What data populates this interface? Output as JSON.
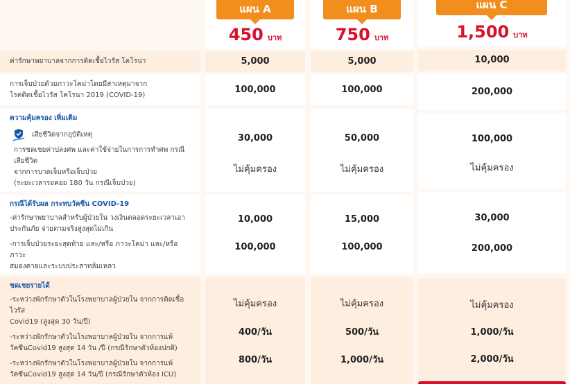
{
  "plans": [
    {
      "name": "แผน A",
      "price": "450",
      "unit": "บาท"
    },
    {
      "name": "แผน B",
      "price": "750",
      "unit": "บาท"
    },
    {
      "name": "แผน C",
      "price": "1,500",
      "unit": "บาท"
    }
  ],
  "rows": {
    "r1": {
      "label": "ค่ารักษาพยาบาลจากการติดเชื้อไวรัส โคโรน่า",
      "values": [
        "5,000",
        "5,000",
        "10,000"
      ]
    },
    "r2": {
      "label1": "การเจ็บป่วยด้วยภาวะโคม่าโดยมีสาเหตุมาจาก",
      "label2": "โรคติดเชื้อไวรัส โคโรนา 2019 (COVID-19)",
      "values": [
        "100,000",
        "100,000",
        "200,000"
      ]
    },
    "r3": {
      "heading": "ความคุ้มครอง เพิ่มเติม",
      "item": "เสียชีวิตจากอุบัติเหตุ",
      "desc1": "การชดเชยค่าปลงศพ และค่าใช้จ่ายในการการทำศพ กรณีเสียชีวิต",
      "desc2": "จากการบาดเจ็บหรือเจ็บป่วย",
      "desc3": "(ระยะเวลารอคอย 180 วัน กรณีเจ็บป่วย)",
      "values": [
        "30,000",
        "50,000",
        "100,000"
      ],
      "values2": [
        "ไม่คุ้มครอง",
        "ไม่คุ้มครอง",
        "ไม่คุ้มครอง"
      ]
    },
    "r4": {
      "heading": "กรณีได้รับผล กระทบวัคซีน COVID-19",
      "a1": "-ค่ารักษาพยาบาลสำหรับผู้ป่วยใน วงเงินตลอดระยะเวลาเอา",
      "a2": "ประกันภัย จ่ายตามจริงสูงสุดไม่เกิน",
      "b1": "-การเจ็บป่วยระยะสุดท้าย และ/หรือ ภาวะโคม่า และ/หรือ ภาวะ",
      "b2": "สมองตายและระบบประสาทล้มเหลว",
      "values": [
        "10,000",
        "15,000",
        "30,000"
      ],
      "values2": [
        "100,000",
        "100,000",
        "200,000"
      ]
    },
    "r5": {
      "heading": "ชดเชยรายได้",
      "a1": "-ระหว่างพักรักษาตัวในโรงพยาบาลผู้ป่วยใน จากการติดเชื้อไวรัส",
      "a2": "Covid19 (สูงสุด 30 วัน/ปี)",
      "b1": "-ระหว่างพักรักษาตัวในโรงพยาบาลผู้ป่วยใน จากการแพ้",
      "b2": "วัคซีนCovid19 สูงสุด 14 วัน /ปี (กรณีรักษาตัวห้องปกติ)",
      "c1": "-ระหว่างพักรักษาตัวในโรงพยาบาลผู้ป่วยใน จากการแพ้",
      "c2": "วัคซีนCovid19 สูงสุด 14 วัน/ปี (กรณีรักษาตัวห้อง ICU)",
      "values": [
        "ไม่คุ้มครอง",
        "ไม่คุ้มครอง",
        "ไม่คุ้มครอง"
      ],
      "values2": [
        "400/วัน",
        "500/วัน",
        "1,000/วัน"
      ],
      "values3": [
        "800/วัน",
        "1,000/วัน",
        "2,000/วัน"
      ]
    }
  },
  "colors": {
    "accent": "#f28e1e",
    "price": "#d9102c",
    "heading": "#1757a6"
  }
}
